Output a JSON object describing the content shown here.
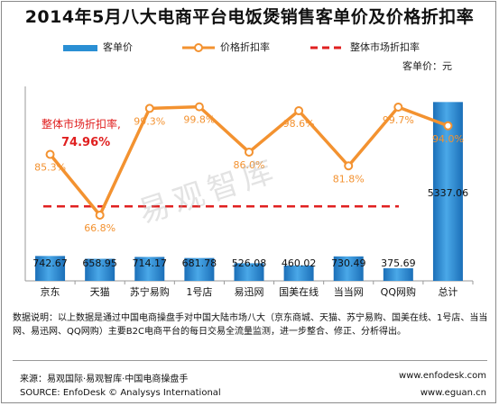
{
  "title": "2014年5月八大电商平台电饭煲销售客单价及价格折扣率",
  "unit_label": "客单价：元",
  "watermark": "易观智库",
  "note": "数据说明：以上数据是通过中国电商操盘手对中国大陆市场八大（京东商城、天猫、苏宁易购、国美在线、1号店、当当网、易迅网、QQ网购）主要B2C电商平台的每日交易全流量监测，进一步整合、修正、分析得出。",
  "source": {
    "cn": "来源：易观国际·易观智库·中国电商操盘手",
    "en": "SOURCE: EnfoDesk © Analysys International",
    "url1": "www.enfodesk.com",
    "url2": "www.eguan.cn"
  },
  "colors": {
    "bar": "#2a8fd4",
    "line": "#f39230",
    "overall": "#e02020",
    "label_orange": "#f39230"
  },
  "chart_data": {
    "type": "bar",
    "categories": [
      "京东",
      "天猫",
      "苏宁易购",
      "1号店",
      "易迅网",
      "国美在线",
      "当当网",
      "QQ网购",
      "总计"
    ],
    "series": [
      {
        "name": "客单价",
        "type": "bar",
        "values": [
          742.67,
          658.95,
          714.17,
          681.78,
          526.08,
          460.02,
          730.49,
          375.69,
          5337.06
        ]
      },
      {
        "name": "价格折扣率",
        "type": "line",
        "values": [
          85.3,
          66.8,
          99.3,
          99.8,
          86.0,
          98.6,
          81.8,
          99.7,
          94.0
        ],
        "labels": [
          "85.3%",
          "66.8%",
          "99.3%",
          "99.8%",
          "86.0%",
          "98.6%",
          "81.8%",
          "99.7%",
          "94.0%"
        ]
      }
    ],
    "reference_line": {
      "name": "整体市场折扣率",
      "value": 74.96,
      "label": "整体市场折扣率,",
      "value_label": "74.96%"
    },
    "bar_labels": [
      "742.67",
      "658.95",
      "714.17",
      "681.78",
      "526.08",
      "460.02",
      "730.49",
      "375.69",
      "5337.06"
    ],
    "bar_ylim": [
      0,
      5400
    ],
    "line_ylim": [
      0,
      110
    ],
    "legend_position": "top-center",
    "grid": false
  }
}
